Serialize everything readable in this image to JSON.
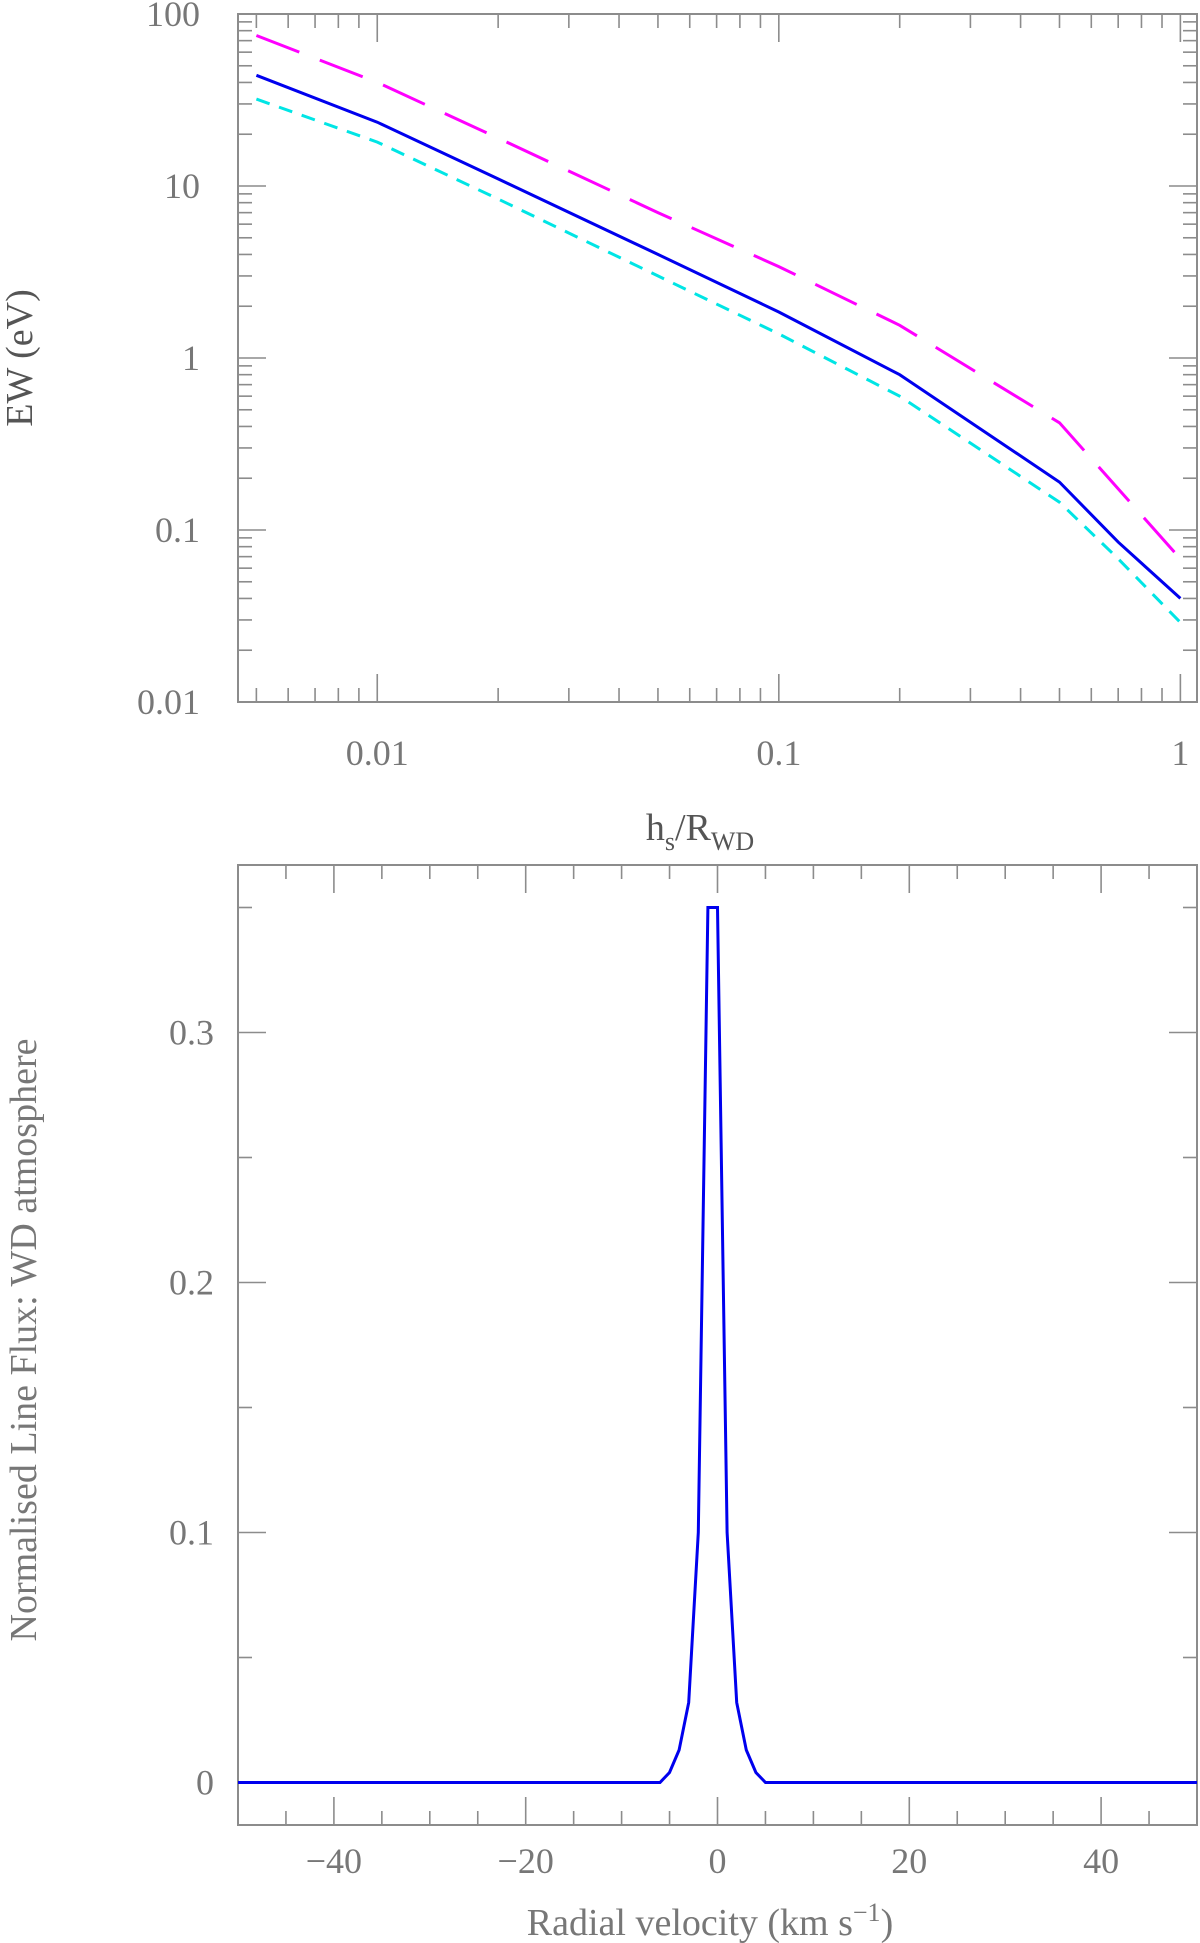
{
  "chart_data": [
    {
      "type": "line",
      "xlabel": {
        "base": "h",
        "sub1": "s",
        "mid": "/R",
        "sub2": "WD"
      },
      "ylabel": "EW (eV)",
      "xscale": "log",
      "yscale": "log",
      "xlim": [
        0.0045,
        1.1
      ],
      "ylim": [
        0.01,
        100
      ],
      "xticks": [
        {
          "value": 0.01,
          "label": "0.01"
        },
        {
          "value": 0.1,
          "label": "0.1"
        },
        {
          "value": 1,
          "label": "1"
        }
      ],
      "yticks": [
        {
          "value": 0.01,
          "label": "0.01"
        },
        {
          "value": 0.1,
          "label": "0.1"
        },
        {
          "value": 1,
          "label": "1"
        },
        {
          "value": 10,
          "label": "10"
        },
        {
          "value": 100,
          "label": "100"
        }
      ],
      "series": [
        {
          "color": "#ff00ff",
          "dash": "long-dash",
          "points": [
            [
              0.005,
              75
            ],
            [
              0.01,
              40
            ],
            [
              0.02,
              19
            ],
            [
              0.05,
              7
            ],
            [
              0.1,
              3.4
            ],
            [
              0.2,
              1.55
            ],
            [
              0.5,
              0.42
            ],
            [
              1.0,
              0.068
            ]
          ]
        },
        {
          "color": "#0000ee",
          "dash": "solid",
          "points": [
            [
              0.005,
              44
            ],
            [
              0.01,
              23.5
            ],
            [
              0.02,
              11
            ],
            [
              0.05,
              4
            ],
            [
              0.1,
              1.85
            ],
            [
              0.2,
              0.8
            ],
            [
              0.5,
              0.19
            ],
            [
              0.7,
              0.085
            ],
            [
              1.0,
              0.04
            ]
          ]
        },
        {
          "color": "#00e5e5",
          "dash": "short-dash",
          "points": [
            [
              0.005,
              32
            ],
            [
              0.01,
              18
            ],
            [
              0.02,
              8.4
            ],
            [
              0.05,
              3
            ],
            [
              0.1,
              1.38
            ],
            [
              0.2,
              0.6
            ],
            [
              0.5,
              0.145
            ],
            [
              0.7,
              0.068
            ],
            [
              1.0,
              0.029
            ]
          ]
        }
      ]
    },
    {
      "type": "line",
      "xlabel": "Radial velocity (km s",
      "xlabel_sup": "−1",
      "xlabel_end": ")",
      "ylabel": "Normalised Line Flux: WD atmosphere",
      "xlim": [
        -50,
        50
      ],
      "ylim": [
        -0.017,
        0.367
      ],
      "xticks": [
        {
          "value": -40,
          "label": "−40"
        },
        {
          "value": -20,
          "label": "−20"
        },
        {
          "value": 0,
          "label": "0"
        },
        {
          "value": 20,
          "label": "20"
        },
        {
          "value": 40,
          "label": "40"
        }
      ],
      "yticks": [
        {
          "value": 0,
          "label": "0"
        },
        {
          "value": 0.1,
          "label": "0.1"
        },
        {
          "value": 0.2,
          "label": "0.2"
        },
        {
          "value": 0.3,
          "label": "0.3"
        }
      ],
      "series": [
        {
          "color": "#0000ee",
          "dash": "solid",
          "points": [
            [
              -50,
              0
            ],
            [
              -6,
              0
            ],
            [
              -5,
              0.004
            ],
            [
              -4,
              0.013
            ],
            [
              -3,
              0.032
            ],
            [
              -2,
              0.1
            ],
            [
              -1,
              0.35
            ],
            [
              0,
              0.35
            ],
            [
              1,
              0.1
            ],
            [
              2,
              0.032
            ],
            [
              3,
              0.013
            ],
            [
              4,
              0.004
            ],
            [
              5,
              0
            ],
            [
              50,
              0
            ]
          ]
        }
      ]
    }
  ]
}
